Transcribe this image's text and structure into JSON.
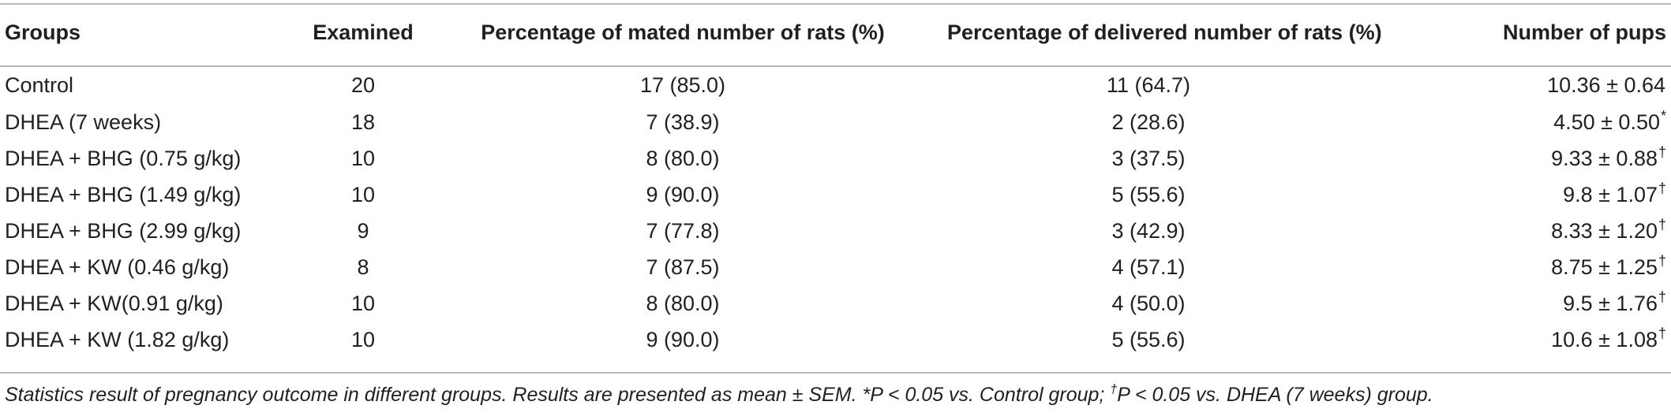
{
  "table": {
    "headers": {
      "groups": "Groups",
      "examined": "Examined",
      "mated": "Percentage of mated number of rats (%)",
      "delivered": "Percentage of delivered number of rats (%)",
      "pups": "Number of pups"
    },
    "rows": [
      {
        "group": "Control",
        "examined": "20",
        "mated": "17 (85.0)",
        "delivered": "11 (64.7)",
        "pups": "10.36 ± 0.64",
        "mark": ""
      },
      {
        "group": "DHEA (7 weeks)",
        "examined": "18",
        "mated": "7 (38.9)",
        "delivered": "2 (28.6)",
        "pups": "4.50 ± 0.50",
        "mark": "*"
      },
      {
        "group": "DHEA + BHG (0.75 g/kg)",
        "examined": "10",
        "mated": "8 (80.0)",
        "delivered": "3 (37.5)",
        "pups": "9.33 ± 0.88",
        "mark": "†"
      },
      {
        "group": "DHEA + BHG (1.49 g/kg)",
        "examined": "10",
        "mated": "9 (90.0)",
        "delivered": "5 (55.6)",
        "pups": "9.8 ± 1.07",
        "mark": "†"
      },
      {
        "group": "DHEA + BHG (2.99 g/kg)",
        "examined": "9",
        "mated": "7 (77.8)",
        "delivered": "3 (42.9)",
        "pups": "8.33 ± 1.20",
        "mark": "†"
      },
      {
        "group": "DHEA + KW (0.46 g/kg)",
        "examined": "8",
        "mated": "7 (87.5)",
        "delivered": "4 (57.1)",
        "pups": "8.75 ± 1.25",
        "mark": "†"
      },
      {
        "group": "DHEA + KW(0.91 g/kg)",
        "examined": "10",
        "mated": "8 (80.0)",
        "delivered": "4 (50.0)",
        "pups": "9.5 ± 1.76",
        "mark": "†"
      },
      {
        "group": "DHEA + KW (1.82 g/kg)",
        "examined": "10",
        "mated": "9 (90.0)",
        "delivered": "5 (55.6)",
        "pups": "10.6 ± 1.08",
        "mark": "†"
      }
    ]
  },
  "caption": {
    "part1": "Statistics result of pregnancy outcome in different groups. Results are presented as mean ± SEM. *P < 0.05 vs. Control group; ",
    "dagger": "†",
    "part2": "P < 0.05 vs. DHEA (7 weeks) group."
  }
}
